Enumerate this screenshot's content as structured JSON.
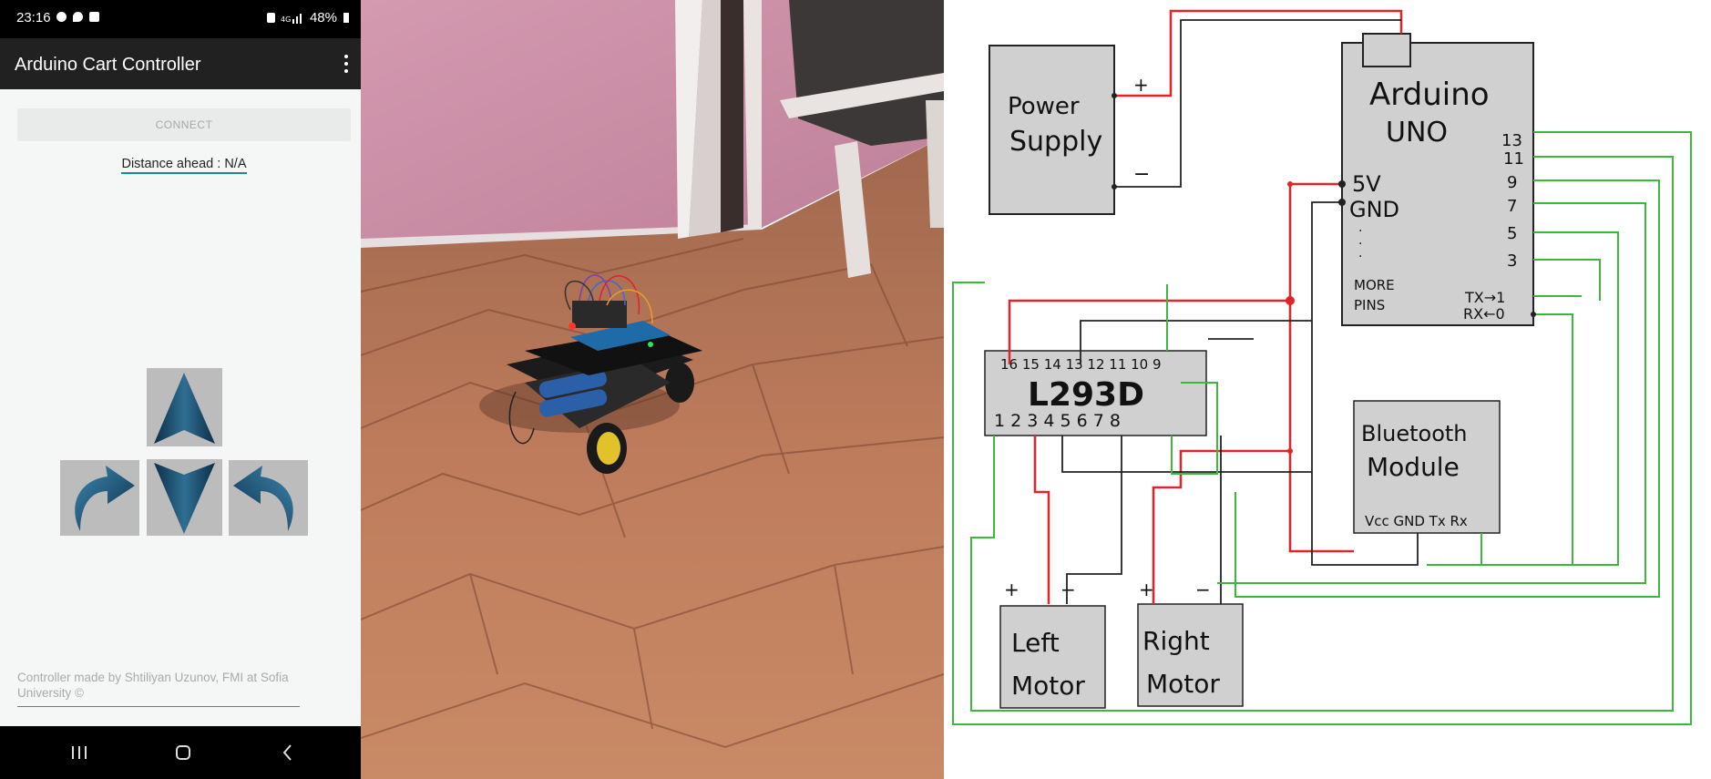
{
  "status_bar": {
    "time": "23:16",
    "battery": "48%"
  },
  "app_bar": {
    "title": "Arduino Cart Controller"
  },
  "controller": {
    "connect_label": "CONNECT",
    "distance_text": "Distance ahead : N/A",
    "footer": "Controller made by Shtiliyan Uzunov, FMI at Sofia University ©"
  },
  "diagram": {
    "power_supply": [
      "Power",
      "Supply"
    ],
    "plus": "+",
    "minus": "−",
    "arduino": [
      "Arduino",
      "UNO"
    ],
    "pin_5v": "5V",
    "pin_gnd": "GND",
    "more_pins": [
      "MORE",
      "PINS"
    ],
    "right_pins": [
      "13",
      "11",
      "9",
      "7",
      "5",
      "3"
    ],
    "tx_pin": "TX→1",
    "rx_pin": "RX←0",
    "chip": "L293D",
    "chip_top_pins": "16 15 14 13 12 11 10 9",
    "chip_bottom_pins": "1 2 3 4 5 6 7 8",
    "bluetooth": [
      "Bluetooth",
      "Module"
    ],
    "bt_pins": "Vcc GND Tx Rx",
    "left_motor": [
      "Left",
      "Motor"
    ],
    "right_motor": [
      "Right",
      "Motor"
    ]
  },
  "colors": {
    "app_bar": "#212121",
    "accent": "#16908a",
    "wire_red": "#e0242a",
    "wire_green": "#3cb83c",
    "wire_black": "#222222",
    "wall": "#cf8ea6",
    "floor": "#b9775a"
  },
  "icons": {
    "up": "arrow-up-icon",
    "down": "arrow-down-icon",
    "left": "turn-left-icon",
    "right": "turn-right-icon"
  }
}
